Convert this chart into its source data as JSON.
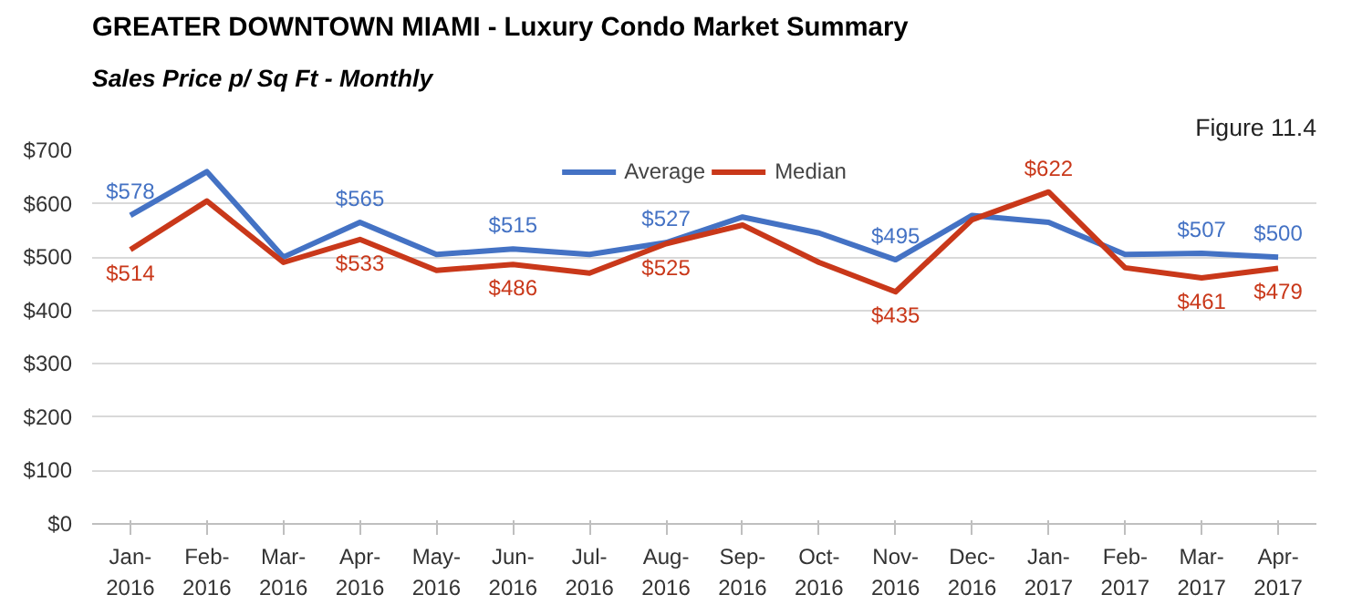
{
  "chart_data": {
    "type": "line",
    "title": "GREATER DOWNTOWN MIAMI - Luxury Condo Market Summary",
    "subtitle": "Sales Price  p/ Sq Ft - Monthly",
    "annotations": [
      "Figure 11.4"
    ],
    "categories": [
      "Jan-2016",
      "Feb-2016",
      "Mar-2016",
      "Apr-2016",
      "May-2016",
      "Jun-2016",
      "Jul-2016",
      "Aug-2016",
      "Sep-2016",
      "Oct-2016",
      "Nov-2016",
      "Dec-2016",
      "Jan-2017",
      "Feb-2017",
      "Mar-2017",
      "Apr-2017"
    ],
    "series": [
      {
        "name": "Average",
        "color": "#4472c4",
        "values": [
          578,
          660,
          500,
          565,
          505,
          515,
          505,
          527,
          575,
          545,
          495,
          578,
          565,
          505,
          507,
          500
        ],
        "value_labels": [
          "$578",
          null,
          null,
          "$565",
          null,
          "$515",
          null,
          "$527",
          null,
          null,
          "$495",
          null,
          null,
          null,
          "$507",
          "$500"
        ]
      },
      {
        "name": "Median",
        "color": "#c9381a",
        "values": [
          514,
          605,
          490,
          533,
          475,
          486,
          470,
          525,
          560,
          490,
          435,
          570,
          622,
          480,
          461,
          479
        ],
        "value_labels": [
          "$514",
          null,
          null,
          "$533",
          null,
          "$486",
          null,
          "$525",
          null,
          null,
          "$435",
          null,
          "$622",
          null,
          "$461",
          "$479"
        ]
      }
    ],
    "ylim": [
      0,
      700
    ],
    "yticks": [
      {
        "value": 0,
        "label": "$0"
      },
      {
        "value": 100,
        "label": "$100"
      },
      {
        "value": 200,
        "label": "$200"
      },
      {
        "value": 300,
        "label": "$300"
      },
      {
        "value": 400,
        "label": "$400"
      },
      {
        "value": 500,
        "label": "$500"
      },
      {
        "value": 600,
        "label": "$600"
      },
      {
        "value": 700,
        "label": "$700"
      }
    ],
    "grid": "y",
    "legend": "top",
    "marker": "none",
    "line_style": "solid"
  }
}
